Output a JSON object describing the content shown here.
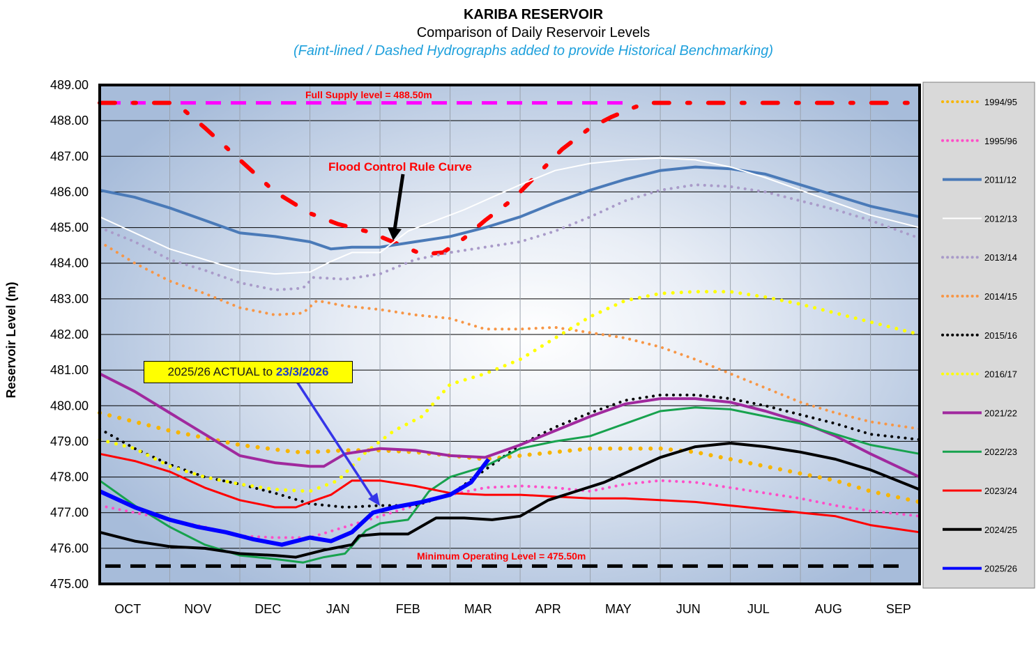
{
  "chart_data": {
    "type": "line",
    "title": "KARIBA  RESERVOIR",
    "subtitle": "Comparison  of Daily Reservoir  Levels",
    "note": "(Faint-lined / Dashed Hydrographs added to provide Historical Benchmarking)",
    "ylabel": "Reservoir Level (m)",
    "xlabel": "",
    "ylim": [
      475,
      489
    ],
    "yticks": [
      "475.00",
      "476.00",
      "477.00",
      "478.00",
      "479.00",
      "480.00",
      "481.00",
      "482.00",
      "483.00",
      "484.00",
      "485.00",
      "486.00",
      "487.00",
      "488.00",
      "489.00"
    ],
    "xlim": [
      0,
      11.7
    ],
    "months": [
      "OCT",
      "NOV",
      "DEC",
      "JAN",
      "FEB",
      "MAR",
      "APR",
      "MAY",
      "JUN",
      "JUL",
      "AUG",
      "SEP"
    ],
    "grid": true,
    "legend_position": "right",
    "annotations": {
      "full_supply": "Full  Supply  level  = 488.50m",
      "flood_control": "Flood Control Rule Curve",
      "minimum": "Minimum  Operating Level = 475.50m",
      "callout_prefix": "2025/26 ACTUAL to ",
      "callout_date": "23/3/2026"
    },
    "reference_lines": [
      {
        "label": "Full  Supply  level  = 488.50m",
        "y": 488.5,
        "color": "#ff00ff",
        "style": "dashed"
      },
      {
        "label": "Minimum  Operating Level = 475.50m",
        "y": 475.5,
        "color": "#000000",
        "style": "dashed"
      }
    ],
    "rule_curve": {
      "color": "#ff0000",
      "x": [
        0,
        0.5,
        1.0,
        1.2,
        1.5,
        2.0,
        2.5,
        3.0,
        3.4,
        3.8,
        4.0,
        4.3,
        4.6,
        4.9,
        5.2,
        5.5,
        5.9,
        6.2,
        6.6,
        7.0,
        7.3,
        7.6,
        7.8,
        8.0,
        8.5,
        9.0,
        9.5,
        10.0,
        10.5,
        11.0,
        11.7
      ],
      "y": [
        488.5,
        488.5,
        488.5,
        488.3,
        487.8,
        486.9,
        486.0,
        485.4,
        485.1,
        484.9,
        484.75,
        484.5,
        484.25,
        484.3,
        484.7,
        485.2,
        485.8,
        486.4,
        487.2,
        487.8,
        488.1,
        488.35,
        488.5,
        488.5,
        488.5,
        488.5,
        488.5,
        488.5,
        488.5,
        488.5,
        488.5
      ]
    },
    "series": [
      {
        "name": "1994/95",
        "color": "#f7b500",
        "style": "dotted",
        "width": 6,
        "x": [
          0,
          1,
          2,
          2.8,
          3,
          3.5,
          4,
          4.5,
          5,
          5.5,
          6,
          6.5,
          7,
          7.5,
          8,
          8.5,
          9,
          9.5,
          10,
          10.5,
          11,
          11.7
        ],
        "y": [
          479.8,
          479.3,
          478.9,
          478.7,
          478.7,
          478.75,
          478.75,
          478.7,
          478.6,
          478.5,
          478.6,
          478.7,
          478.8,
          478.8,
          478.8,
          478.7,
          478.5,
          478.3,
          478.1,
          477.9,
          477.6,
          477.3
        ]
      },
      {
        "name": "1995/96",
        "color": "#ff4fc8",
        "style": "dotted",
        "width": 4,
        "x": [
          0,
          0.5,
          1,
          1.5,
          2,
          2.5,
          3,
          3.5,
          4,
          4.5,
          5,
          5.5,
          6,
          6.5,
          7,
          7.5,
          8,
          8.5,
          9,
          9.5,
          10,
          10.5,
          11,
          11.7
        ],
        "y": [
          477.2,
          477.0,
          476.8,
          476.6,
          476.35,
          476.3,
          476.3,
          476.6,
          476.9,
          477.2,
          477.5,
          477.7,
          477.75,
          477.7,
          477.6,
          477.8,
          477.9,
          477.85,
          477.7,
          477.55,
          477.4,
          477.2,
          477.05,
          476.9
        ]
      },
      {
        "name": "2011/12",
        "color": "#4a7ab8",
        "style": "solid",
        "width": 4,
        "x": [
          0,
          0.5,
          1,
          1.5,
          2,
          2.5,
          3,
          3.3,
          3.6,
          4,
          4.5,
          5,
          5.5,
          6,
          6.5,
          7,
          7.5,
          8,
          8.5,
          9,
          9.5,
          10,
          10.5,
          11,
          11.7
        ],
        "y": [
          486.05,
          485.85,
          485.55,
          485.2,
          484.85,
          484.75,
          484.6,
          484.4,
          484.45,
          484.45,
          484.6,
          484.75,
          485.0,
          485.3,
          485.7,
          486.05,
          486.35,
          486.6,
          486.7,
          486.65,
          486.5,
          486.2,
          485.9,
          485.6,
          485.3
        ]
      },
      {
        "name": "2012/13",
        "color": "#ffffff",
        "style": "solid",
        "width": 2,
        "x": [
          0,
          0.5,
          1,
          1.5,
          2,
          2.5,
          3,
          3.3,
          3.6,
          4,
          4.4,
          4.8,
          5.2,
          5.6,
          6,
          6.5,
          7,
          7.5,
          8,
          8.5,
          9,
          9.5,
          10,
          10.5,
          11,
          11.7
        ],
        "y": [
          485.3,
          484.85,
          484.4,
          484.1,
          483.8,
          483.7,
          483.75,
          484.05,
          484.3,
          484.3,
          484.9,
          485.2,
          485.5,
          485.85,
          486.2,
          486.6,
          486.8,
          486.9,
          486.95,
          486.9,
          486.7,
          486.4,
          486.05,
          485.7,
          485.35,
          485.0
        ]
      },
      {
        "name": "2013/14",
        "color": "#a99bc9",
        "style": "dotted",
        "width": 4,
        "x": [
          0,
          0.5,
          1,
          1.5,
          2,
          2.5,
          2.9,
          3.05,
          3.5,
          4,
          4.5,
          5,
          5.5,
          6,
          6.5,
          7,
          7.5,
          8,
          8.5,
          9,
          9.5,
          10,
          10.5,
          11,
          11.7
        ],
        "y": [
          485.0,
          484.6,
          484.1,
          483.8,
          483.45,
          483.25,
          483.3,
          483.6,
          483.55,
          483.7,
          484.1,
          484.3,
          484.45,
          484.6,
          484.9,
          485.3,
          485.75,
          486.05,
          486.2,
          486.15,
          486.0,
          485.75,
          485.5,
          485.2,
          484.7
        ]
      },
      {
        "name": "2014/15",
        "color": "#f79646",
        "style": "dotted",
        "width": 4,
        "x": [
          0,
          0.5,
          1,
          1.5,
          2,
          2.5,
          2.9,
          3.1,
          3.5,
          4,
          4.5,
          5,
          5.5,
          6,
          6.5,
          7,
          7.5,
          8,
          8.5,
          9,
          9.5,
          10,
          10.5,
          11,
          11.7
        ],
        "y": [
          484.6,
          484.0,
          483.5,
          483.15,
          482.75,
          482.55,
          482.6,
          482.95,
          482.8,
          482.7,
          482.55,
          482.45,
          482.15,
          482.15,
          482.2,
          482.05,
          481.9,
          481.65,
          481.3,
          480.9,
          480.5,
          480.1,
          479.8,
          479.55,
          479.35
        ]
      },
      {
        "name": "2015/16",
        "color": "#000000",
        "style": "dotted",
        "width": 4,
        "x": [
          0,
          0.5,
          1,
          1.5,
          2,
          2.5,
          3,
          3.5,
          4,
          4.5,
          5,
          5.5,
          6,
          6.5,
          7,
          7.5,
          8,
          8.5,
          9,
          9.5,
          10,
          10.5,
          11,
          11.7
        ],
        "y": [
          479.35,
          478.8,
          478.35,
          478.0,
          477.8,
          477.55,
          477.25,
          477.15,
          477.2,
          477.2,
          477.5,
          478.2,
          478.9,
          479.4,
          479.8,
          480.15,
          480.3,
          480.3,
          480.2,
          480.0,
          479.75,
          479.5,
          479.2,
          479.05
        ]
      },
      {
        "name": "2016/17",
        "color": "#ffff00",
        "style": "dotted",
        "width": 5,
        "x": [
          0,
          0.5,
          1,
          1.5,
          2,
          2.5,
          3,
          3.4,
          3.8,
          4.2,
          4.6,
          5,
          5.5,
          6,
          6.5,
          7,
          7.5,
          8,
          8.5,
          9,
          9.5,
          10,
          10.5,
          11,
          11.7
        ],
        "y": [
          479.05,
          478.8,
          478.3,
          478.0,
          477.8,
          477.65,
          477.6,
          477.9,
          478.7,
          479.3,
          479.7,
          480.6,
          480.9,
          481.3,
          481.9,
          482.5,
          482.95,
          483.15,
          483.2,
          483.2,
          483.05,
          482.85,
          482.6,
          482.35,
          482.0
        ]
      },
      {
        "name": "2021/22",
        "color": "#a0299e",
        "style": "solid",
        "width": 4,
        "x": [
          0,
          0.5,
          1,
          1.5,
          2,
          2.5,
          3,
          3.2,
          3.5,
          4,
          4.5,
          5,
          5.5,
          6,
          6.5,
          7,
          7.5,
          8,
          8.5,
          9,
          9.5,
          10,
          10.5,
          11,
          11.7
        ],
        "y": [
          480.9,
          480.4,
          479.8,
          479.2,
          478.6,
          478.4,
          478.3,
          478.3,
          478.65,
          478.8,
          478.75,
          478.6,
          478.55,
          478.9,
          479.3,
          479.7,
          480.05,
          480.2,
          480.2,
          480.1,
          479.85,
          479.55,
          479.15,
          478.65,
          478.0
        ]
      },
      {
        "name": "2022/23",
        "color": "#17a24e",
        "style": "solid",
        "width": 3,
        "x": [
          0,
          0.5,
          1,
          1.5,
          2,
          2.5,
          2.9,
          3.2,
          3.5,
          3.8,
          4.0,
          4.4,
          4.7,
          5,
          5.5,
          6,
          6.5,
          7,
          7.5,
          8,
          8.5,
          9,
          9.5,
          10,
          10.5,
          11,
          11.7
        ],
        "y": [
          477.9,
          477.2,
          476.6,
          476.1,
          475.8,
          475.7,
          475.6,
          475.75,
          475.85,
          476.5,
          476.7,
          476.8,
          477.6,
          478.0,
          478.3,
          478.8,
          479.0,
          479.15,
          479.5,
          479.85,
          479.95,
          479.9,
          479.7,
          479.5,
          479.2,
          478.9,
          478.65
        ]
      },
      {
        "name": "2023/24",
        "color": "#ff0000",
        "style": "solid",
        "width": 3,
        "x": [
          0,
          0.5,
          1,
          1.5,
          2,
          2.5,
          2.8,
          3.0,
          3.3,
          3.6,
          4,
          4.5,
          5,
          5.5,
          6,
          6.5,
          7,
          7.5,
          8,
          8.5,
          9,
          9.5,
          10,
          10.5,
          11,
          11.7
        ],
        "y": [
          478.65,
          478.45,
          478.15,
          477.7,
          477.35,
          477.15,
          477.15,
          477.3,
          477.5,
          477.9,
          477.9,
          477.75,
          477.55,
          477.5,
          477.5,
          477.45,
          477.4,
          477.4,
          477.35,
          477.3,
          477.2,
          477.1,
          477.0,
          476.9,
          476.65,
          476.45
        ]
      },
      {
        "name": "2024/25",
        "color": "#000000",
        "style": "solid",
        "width": 4,
        "x": [
          0,
          0.5,
          1,
          1.5,
          2,
          2.5,
          2.8,
          3.2,
          3.6,
          3.7,
          4,
          4.4,
          4.8,
          5.2,
          5.6,
          6,
          6.4,
          6.8,
          7.2,
          7.6,
          8,
          8.5,
          9,
          9.5,
          10,
          10.5,
          11,
          11.7
        ],
        "y": [
          476.45,
          476.2,
          476.05,
          476.0,
          475.85,
          475.8,
          475.75,
          475.95,
          476.1,
          476.35,
          476.4,
          476.4,
          476.85,
          476.85,
          476.8,
          476.9,
          477.35,
          477.6,
          477.85,
          478.2,
          478.55,
          478.85,
          478.95,
          478.85,
          478.7,
          478.5,
          478.2,
          477.65
        ]
      },
      {
        "name": "2025/26",
        "color": "#0000ff",
        "style": "solid",
        "width": 6,
        "x": [
          0,
          0.5,
          1,
          1.4,
          1.8,
          2.2,
          2.6,
          3.0,
          3.3,
          3.6,
          3.9,
          4.2,
          4.6,
          5.0,
          5.3,
          5.55
        ],
        "y": [
          477.6,
          477.15,
          476.8,
          476.6,
          476.45,
          476.25,
          476.1,
          476.3,
          476.2,
          476.45,
          477.0,
          477.15,
          477.3,
          477.5,
          477.85,
          478.5
        ]
      }
    ]
  }
}
